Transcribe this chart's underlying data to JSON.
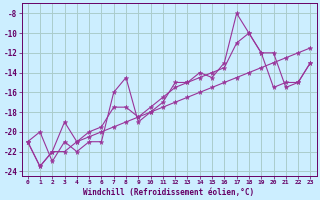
{
  "xlabel": "Windchill (Refroidissement éolien,°C)",
  "background_color": "#cceeff",
  "grid_color": "#aacccc",
  "line_color": "#993399",
  "xlim": [
    -0.5,
    23.5
  ],
  "ylim": [
    -24.5,
    -7.0
  ],
  "xtick_labels": [
    "0",
    "1",
    "2",
    "3",
    "4",
    "5",
    "6",
    "7",
    "8",
    "9",
    "10",
    "11",
    "12",
    "13",
    "14",
    "15",
    "16",
    "17",
    "18",
    "19",
    "20",
    "21",
    "22",
    "23"
  ],
  "ytick_values": [
    -8,
    -10,
    -12,
    -14,
    -16,
    -18,
    -20,
    -22,
    -24
  ],
  "lines": [
    {
      "x": [
        0,
        1,
        2,
        3,
        4,
        5,
        6,
        7,
        8,
        9,
        10,
        11,
        12,
        13,
        14,
        15,
        16,
        17,
        18,
        19,
        20,
        21,
        22,
        23
      ],
      "y": [
        -21,
        -20,
        -23,
        -21,
        -22,
        -21,
        -21,
        -16,
        -14.5,
        -19,
        -18,
        -17,
        -15,
        -15,
        -14,
        -14.5,
        -13,
        -8,
        -10,
        -12,
        -12,
        -15.5,
        -15,
        -13
      ]
    },
    {
      "x": [
        0,
        1,
        2,
        3,
        4,
        5,
        6,
        7,
        8,
        9,
        10,
        11,
        12,
        13,
        14,
        15,
        16,
        17,
        18,
        19,
        20,
        21,
        22,
        23
      ],
      "y": [
        -21,
        -23.5,
        -22,
        -19,
        -21,
        -20,
        -19.5,
        -17.5,
        -17.5,
        -18.5,
        -17.5,
        -16.5,
        -15.5,
        -15,
        -14.5,
        -14,
        -13.5,
        -11,
        -10,
        -12,
        -15.5,
        -15,
        -15,
        -13
      ]
    },
    {
      "x": [
        0,
        1,
        2,
        3,
        4,
        5,
        6,
        7,
        8,
        9,
        10,
        11,
        12,
        13,
        14,
        15,
        16,
        17,
        18,
        19,
        20,
        21,
        22,
        23
      ],
      "y": [
        -21,
        -23.5,
        -22,
        -22,
        -21,
        -20.5,
        -20,
        -19.5,
        -19,
        -18.5,
        -18,
        -17.5,
        -17,
        -16.5,
        -16,
        -15.5,
        -15,
        -14.5,
        -14,
        -13.5,
        -13,
        -12.5,
        -12,
        -11.5
      ]
    }
  ]
}
